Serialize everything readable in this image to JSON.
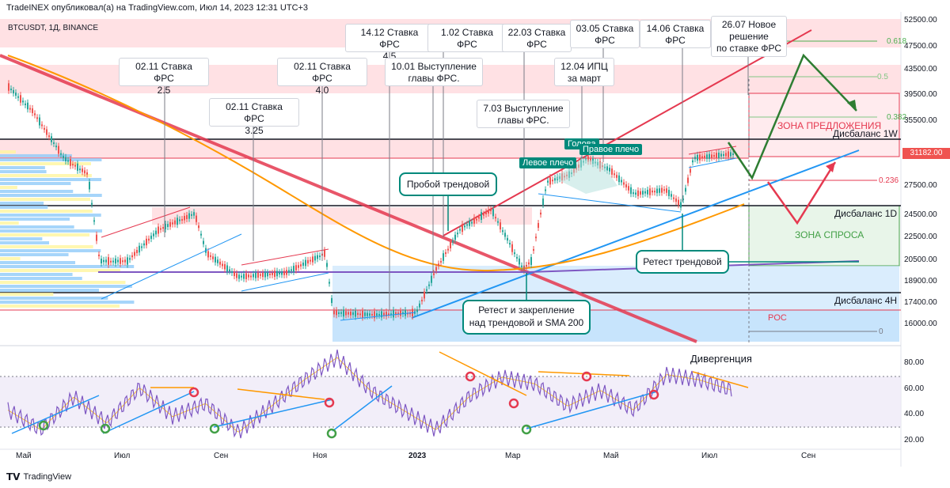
{
  "header": {
    "publisher": "TradeINEX опубликовал(а) на TradingView.com, Июл 14, 2023 12:31 UTC+3"
  },
  "symbol": {
    "label": "BTCUSDT, 1Д, BINANCE"
  },
  "footer": {
    "brand": "TradingView"
  },
  "colors": {
    "up": "#26a69a",
    "down": "#ef5350",
    "trend_red": "#e53950",
    "trend_blue": "#2196f3",
    "sma": "#ff9800",
    "rsi": "#7e57c2",
    "teal": "#00897b"
  },
  "callouts": [
    {
      "text": "02.11 Ставка ФРС\n2.5"
    },
    {
      "text": "02.11 Ставка ФРС\n3.25"
    },
    {
      "text": "02.11 Ставка ФРС\n4.0"
    },
    {
      "text": "14.12 Ставка ФРС\n4.5"
    },
    {
      "text": "10.01 Выступление\nглавы ФРС."
    },
    {
      "text": "1.02 Ставка ФРС\n4.75"
    },
    {
      "text": "22.03 Ставка ФРС\n5.0"
    },
    {
      "text": "7.03 Выступление\nглавы ФРС."
    },
    {
      "text": "12.04 ИПЦ\nза март"
    },
    {
      "text": "03.05 Ставка ФРС\n5.25"
    },
    {
      "text": "14.06 Ставка ФРС\n5.25"
    },
    {
      "text": "26.07 Новое\nрешение\nпо ставке ФРС"
    }
  ],
  "annotations": {
    "breakout": "Пробой трендовой",
    "retest_sma": "Ретест и закрепление\nнад трендовой и SMA 200",
    "retest": "Ретест трендовой",
    "left_shoulder": "Левое плечо",
    "head": "Голова",
    "right_shoulder": "Правое плечо",
    "supply_zone": "ЗОНА ПРЕДЛОЖЕНИЯ",
    "demand_zone": "ЗОНА СПРОСА",
    "imb_1w": "Дисбаланс 1W",
    "imb_1d": "Дисбаланс 1D",
    "imb_4h": "Дисбаланс 4H",
    "poc": "POC",
    "divergence": "Дивергенция"
  },
  "fib_levels": [
    "0.618",
    "0.5",
    "0.382",
    "0.236",
    "0"
  ],
  "current_price": "31182.00",
  "chart_data": {
    "type": "line",
    "title": "BTCUSDT, 1Д, BINANCE",
    "price_axis": [
      "52500.00",
      "47500.00",
      "43500.00",
      "39500.00",
      "35500.00",
      "27500.00",
      "24500.00",
      "22500.00",
      "20500.00",
      "18900.00",
      "17400.00",
      "16000.00"
    ],
    "rsi_axis": [
      "80.00",
      "60.00",
      "40.00",
      "20.00"
    ],
    "x_ticks": [
      "Май",
      "Июл",
      "Сен",
      "Ноя",
      "2023",
      "Мар",
      "Май",
      "Июл",
      "Сен"
    ],
    "series": [
      {
        "name": "BTCUSDT",
        "x": [
          "Май",
          "Июл",
          "Сен",
          "Ноя",
          "2023",
          "Мар",
          "Май",
          "Июл"
        ],
        "values": [
          39000,
          20000,
          19500,
          16500,
          16700,
          23500,
          28500,
          30300
        ]
      }
    ],
    "rsi_series": {
      "values": [
        45,
        30,
        55,
        35,
        62,
        40,
        50,
        28,
        48,
        68,
        85,
        60,
        45,
        30,
        55,
        70,
        65,
        48,
        60,
        45,
        72,
        68,
        60
      ]
    }
  }
}
